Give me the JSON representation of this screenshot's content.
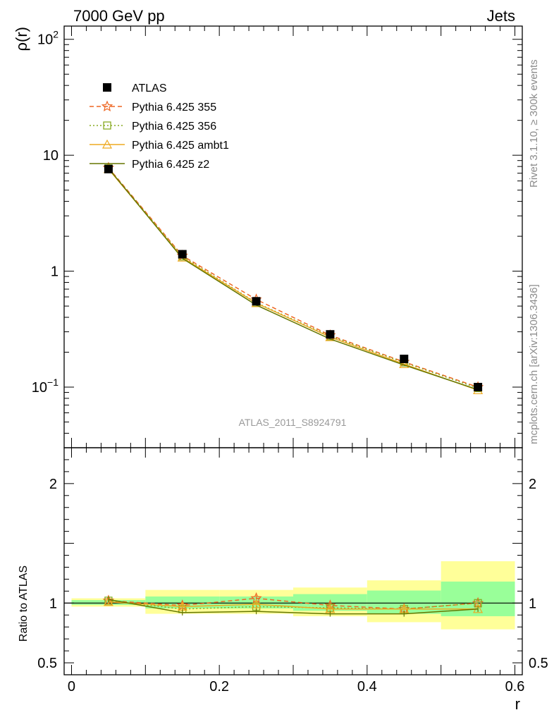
{
  "header": {
    "left": "7000 GeV pp",
    "right": "Jets"
  },
  "side_text": {
    "upper": "Rivet 3.1.10, ≥ 300k events",
    "lower": "mcplots.cern.ch [arXiv:1306.3436]"
  },
  "watermark": "ATLAS_2011_S8924791",
  "chart_data": [
    {
      "type": "line",
      "panel": "main",
      "ylabel": "ρ(r)",
      "yscale": "log",
      "ylim": [
        0.03,
        130
      ],
      "yticks": [
        {
          "value": 100,
          "base": "10",
          "exp": "2"
        },
        {
          "value": 10,
          "base": "10",
          "exp": ""
        },
        {
          "value": 1,
          "base": "1",
          "exp": ""
        },
        {
          "value": 0.1,
          "base": "10",
          "exp": "−1"
        }
      ],
      "x": [
        0.05,
        0.15,
        0.25,
        0.35,
        0.45,
        0.55
      ],
      "legend_position": "top-left",
      "series": [
        {
          "name": "ATLAS",
          "color": "#000000",
          "style": "data",
          "marker": "square",
          "values": [
            7.6,
            1.4,
            0.55,
            0.285,
            0.175,
            0.1
          ]
        },
        {
          "name": "Pythia 6.425 355",
          "color": "#ee6622",
          "style": "dashed",
          "marker": "star",
          "values": [
            7.8,
            1.36,
            0.57,
            0.28,
            0.165,
            0.1
          ]
        },
        {
          "name": "Pythia 6.425 356",
          "color": "#88aa22",
          "style": "dotted",
          "marker": "square-open",
          "values": [
            7.7,
            1.34,
            0.535,
            0.275,
            0.163,
            0.098
          ]
        },
        {
          "name": "Pythia 6.425 ambt1",
          "color": "#eeaa22",
          "style": "solid",
          "marker": "triangle-open",
          "values": [
            7.6,
            1.31,
            0.53,
            0.27,
            0.158,
            0.094
          ]
        },
        {
          "name": "Pythia 6.425 z2",
          "color": "#667700",
          "style": "solid",
          "marker": "none",
          "values": [
            7.7,
            1.29,
            0.51,
            0.26,
            0.155,
            0.095
          ]
        }
      ]
    },
    {
      "type": "line",
      "panel": "ratio",
      "ylabel": "Ratio to ATLAS",
      "xlabel": "r",
      "ylim": [
        0.4,
        2.3
      ],
      "xlim": [
        -0.01,
        0.61
      ],
      "yticks": [
        0.5,
        1,
        2
      ],
      "xticks": [
        0,
        0.2,
        0.4,
        0.6
      ],
      "x": [
        0.05,
        0.15,
        0.25,
        0.35,
        0.45,
        0.55
      ],
      "bins": [
        [
          0,
          0.1
        ],
        [
          0.1,
          0.2
        ],
        [
          0.2,
          0.3
        ],
        [
          0.3,
          0.4
        ],
        [
          0.4,
          0.5
        ],
        [
          0.5,
          0.6
        ]
      ],
      "band_total": [
        [
          0.97,
          1.04
        ],
        [
          0.91,
          1.11
        ],
        [
          0.91,
          1.11
        ],
        [
          0.89,
          1.13
        ],
        [
          0.84,
          1.19
        ],
        [
          0.78,
          1.35
        ]
      ],
      "band_stat": [
        [
          0.985,
          1.025
        ],
        [
          0.955,
          1.055
        ],
        [
          0.955,
          1.055
        ],
        [
          0.935,
          1.075
        ],
        [
          0.91,
          1.105
        ],
        [
          0.89,
          1.18
        ]
      ],
      "series": [
        {
          "name": "Pythia 6.425 355",
          "color": "#ee6622",
          "style": "dashed",
          "marker": "star",
          "values": [
            1.02,
            0.98,
            1.04,
            0.98,
            0.95,
            1.0
          ]
        },
        {
          "name": "Pythia 6.425 356",
          "color": "#88aa22",
          "style": "dotted",
          "marker": "square-open",
          "values": [
            1.02,
            0.95,
            0.97,
            0.96,
            0.95,
            1.0
          ]
        },
        {
          "name": "Pythia 6.425 ambt1",
          "color": "#eeaa22",
          "style": "solid",
          "marker": "triangle-open",
          "values": [
            1.01,
            0.97,
            0.99,
            0.95,
            0.95,
            0.95
          ]
        },
        {
          "name": "Pythia 6.425 z2",
          "color": "#667700",
          "style": "solid",
          "marker": "none",
          "values": [
            1.03,
            0.92,
            0.93,
            0.91,
            0.91,
            0.95
          ]
        }
      ]
    }
  ]
}
